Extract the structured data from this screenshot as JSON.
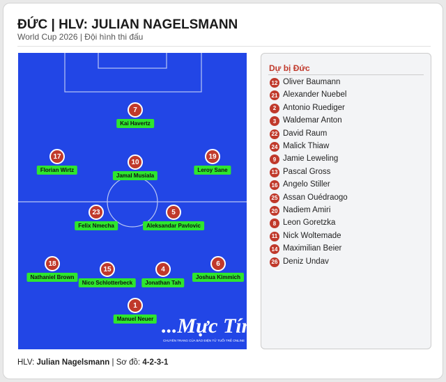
{
  "header": {
    "title": "ĐỨC | HLV: JULIAN NAGELSMANN",
    "subtitle": "World Cup 2026 | Đội hình thi đấu"
  },
  "lineup": [
    {
      "number": "7",
      "name": "Kai Havertz"
    },
    {
      "number": "17",
      "name": "Florian Wirtz"
    },
    {
      "number": "10",
      "name": "Jamal Musiala"
    },
    {
      "number": "19",
      "name": "Leroy Sane"
    },
    {
      "number": "23",
      "name": "Felix Nmecha"
    },
    {
      "number": "5",
      "name": "Aleksandar Pavlovic"
    },
    {
      "number": "18",
      "name": "Nathaniel Brown"
    },
    {
      "number": "15",
      "name": "Nico Schlotterbeck"
    },
    {
      "number": "4",
      "name": "Jonathan Tah"
    },
    {
      "number": "6",
      "name": "Joshua Kimmich"
    },
    {
      "number": "1",
      "name": "Manuel Neuer"
    }
  ],
  "watermark": {
    "brand": "...Mực Tím",
    "tagline": "CHUYÊN TRANG CỦA BÁO ĐIỆN TỬ TUỔI TRẺ ONLINE"
  },
  "bench": {
    "title": "Dự bị Đức",
    "players": [
      {
        "number": "12",
        "name": "Oliver Baumann"
      },
      {
        "number": "21",
        "name": "Alexander Nuebel"
      },
      {
        "number": "2",
        "name": "Antonio Ruediger"
      },
      {
        "number": "3",
        "name": "Waldemar Anton"
      },
      {
        "number": "22",
        "name": "David Raum"
      },
      {
        "number": "24",
        "name": "Malick Thiaw"
      },
      {
        "number": "9",
        "name": "Jamie Leweling"
      },
      {
        "number": "13",
        "name": "Pascal Gross"
      },
      {
        "number": "16",
        "name": "Angelo Stiller"
      },
      {
        "number": "25",
        "name": "Assan Ouédraogo"
      },
      {
        "number": "20",
        "name": "Nadiem Amiri"
      },
      {
        "number": "8",
        "name": "Leon Goretzka"
      },
      {
        "number": "11",
        "name": "Nick Woltemade"
      },
      {
        "number": "14",
        "name": "Maximilian Beier"
      },
      {
        "number": "26",
        "name": "Deniz Undav"
      }
    ]
  },
  "footer": {
    "coach_label": "HLV:",
    "coach": "Julian Nagelsmann",
    "separator": "|",
    "formation_label": "Sơ đồ:",
    "formation": "4-2-3-1"
  }
}
